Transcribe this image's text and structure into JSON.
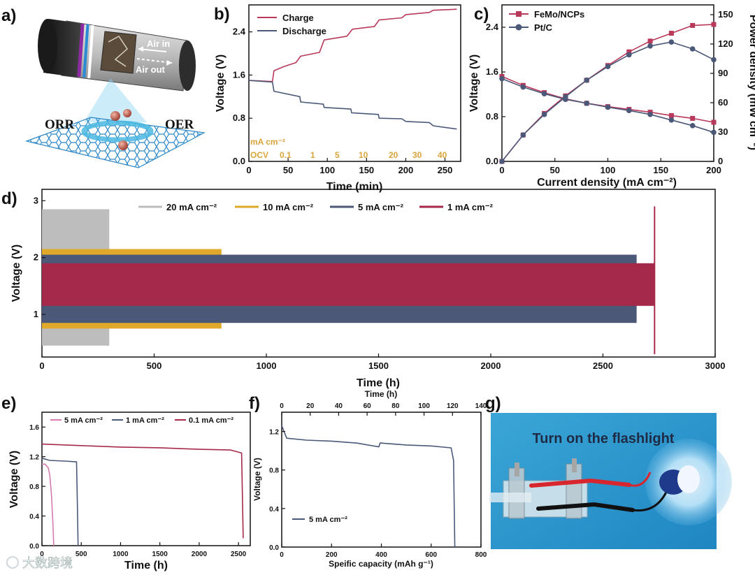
{
  "panel_labels": {
    "a": "a)",
    "b": "b)",
    "c": "c)",
    "d": "d)",
    "e": "e)",
    "f": "f)",
    "g": "g)"
  },
  "panel_a": {
    "air_in": "Air in",
    "air_out": "Air out",
    "orr": "ORR",
    "oer": "OER"
  },
  "panel_g": {
    "caption": "Turn on the flashlight"
  },
  "watermark": "大数跨境",
  "colors": {
    "red": "#b8395a",
    "blue": "#4b5878",
    "gold": "#e0a92a",
    "gray": "#bdbdbd",
    "darkred": "#a52a4a"
  },
  "chart_data": [
    {
      "id": "b",
      "type": "line",
      "xlabel": "Time (min)",
      "ylabel": "Voltage (V)",
      "xlim": [
        0,
        270
      ],
      "ylim": [
        0,
        2.9
      ],
      "xticks": [
        "0",
        "50",
        "100",
        "150",
        "200",
        "250"
      ],
      "yticks": [
        "0.0",
        "0.8",
        "1.6",
        "2.4"
      ],
      "series": [
        {
          "name": "Charge",
          "x": [
            0,
            30,
            32,
            45,
            60,
            66,
            90,
            96,
            125,
            132,
            160,
            166,
            195,
            200,
            230,
            235,
            265
          ],
          "y": [
            1.5,
            1.48,
            1.68,
            1.76,
            1.83,
            1.95,
            2.02,
            2.25,
            2.32,
            2.45,
            2.5,
            2.62,
            2.66,
            2.72,
            2.76,
            2.8,
            2.82
          ]
        },
        {
          "name": "Discharge",
          "x": [
            0,
            30,
            32,
            65,
            66,
            95,
            96,
            130,
            131,
            165,
            166,
            195,
            200,
            230,
            235,
            265
          ],
          "y": [
            1.5,
            1.47,
            1.3,
            1.2,
            1.1,
            1.06,
            1.0,
            0.97,
            0.9,
            0.87,
            0.8,
            0.79,
            0.74,
            0.72,
            0.66,
            0.6
          ]
        }
      ],
      "annotation_unit": "mA cm⁻²",
      "current_steps": [
        "OCV",
        "0.1",
        "1",
        "5",
        "10",
        "20",
        "30",
        "40"
      ]
    },
    {
      "id": "c",
      "type": "line",
      "xlabel": "Current density (mA cm⁻²)",
      "ylabel": "Voltage (V)",
      "ylabel_right": "Power density (mW cm⁻²)",
      "xlim": [
        0,
        200
      ],
      "ylim": [
        0,
        2.8
      ],
      "ylim_right": [
        0,
        160
      ],
      "xticks": [
        "0",
        "50",
        "100",
        "150",
        "200"
      ],
      "yticks": [
        "0.0",
        "0.8",
        "1.6",
        "2.4"
      ],
      "yticks_right": [
        "0",
        "30",
        "60",
        "90",
        "120",
        "150"
      ],
      "series": [
        {
          "name": "FeMo/NCPs",
          "marker": "square",
          "x": [
            0,
            20,
            40,
            60,
            80,
            100,
            120,
            140,
            160,
            180,
            200
          ],
          "voltage": [
            1.52,
            1.36,
            1.23,
            1.12,
            1.04,
            0.98,
            0.93,
            0.88,
            0.82,
            0.77,
            0.7
          ],
          "power": [
            0,
            27,
            49,
            67,
            83,
            98,
            112,
            123,
            131,
            139,
            140
          ]
        },
        {
          "name": "Pt/C",
          "marker": "circle",
          "x": [
            0,
            20,
            40,
            60,
            80,
            100,
            120,
            140,
            160,
            180,
            200
          ],
          "voltage": [
            1.48,
            1.33,
            1.21,
            1.11,
            1.04,
            0.97,
            0.91,
            0.84,
            0.74,
            0.64,
            0.52
          ],
          "power": [
            0,
            27,
            48,
            66,
            83,
            97,
            109,
            118,
            122,
            115,
            104
          ]
        }
      ]
    },
    {
      "id": "d",
      "type": "area",
      "xlabel": "Time (h)",
      "ylabel": "Voltage (V)",
      "xlim": [
        0,
        3000
      ],
      "ylim": [
        0.25,
        3.2
      ],
      "xticks": [
        "0",
        "500",
        "1000",
        "1500",
        "2000",
        "2500",
        "3000"
      ],
      "yticks": [
        "1",
        "2",
        "3"
      ],
      "series": [
        {
          "name": "20 mA cm⁻²",
          "x_end": 300,
          "upper": 2.85,
          "lower": 0.45
        },
        {
          "name": "10 mA cm⁻²",
          "x_end": 800,
          "upper": 2.15,
          "lower": 0.75
        },
        {
          "name": "5 mA cm⁻²",
          "x_end": 2650,
          "upper": 2.05,
          "lower": 0.85
        },
        {
          "name": "1 mA cm⁻²",
          "x_end": 2730,
          "upper": 1.9,
          "lower": 1.15
        }
      ]
    },
    {
      "id": "e",
      "type": "line",
      "xlabel": "Time (h)",
      "ylabel": "Voltage (V)",
      "xlim": [
        0,
        2650
      ],
      "ylim": [
        0,
        1.8
      ],
      "xticks": [
        "0",
        "500",
        "1000",
        "1500",
        "2000",
        "2500"
      ],
      "yticks": [
        "0.0",
        "0.4",
        "0.8",
        "1.2",
        "1.6"
      ],
      "series": [
        {
          "name": "5 mA cm⁻²",
          "x": [
            0,
            40,
            80,
            100,
            120,
            140,
            150
          ],
          "y": [
            1.1,
            1.1,
            1.05,
            0.95,
            0.7,
            0.3,
            0.0
          ]
        },
        {
          "name": "1 mA cm⁻²",
          "x": [
            0,
            100,
            300,
            440,
            450,
            460
          ],
          "y": [
            1.18,
            1.15,
            1.14,
            1.13,
            0.6,
            0.0
          ]
        },
        {
          "name": "0.1 mA cm⁻²",
          "x": [
            0,
            500,
            1000,
            1500,
            2000,
            2400,
            2540,
            2560
          ],
          "y": [
            1.37,
            1.35,
            1.33,
            1.32,
            1.3,
            1.29,
            1.25,
            0.1
          ]
        }
      ]
    },
    {
      "id": "f",
      "type": "line",
      "xlabel": "Speific capacity (mAh g⁻¹)",
      "ylabel": "Voltage (V)",
      "xlabel_top": "Time (h)",
      "xlim": [
        0,
        800
      ],
      "ylim": [
        0,
        1.4
      ],
      "xlim_top": [
        0,
        140
      ],
      "xticks": [
        "0",
        "200",
        "400",
        "600",
        "800"
      ],
      "xticks_top": [
        "0",
        "20",
        "40",
        "60",
        "80",
        "100",
        "120",
        "140"
      ],
      "yticks": [
        "0.0",
        "0.4",
        "0.8",
        "1.2"
      ],
      "series": [
        {
          "name": "5 mA cm⁻²",
          "x": [
            0,
            20,
            100,
            200,
            300,
            390,
            395,
            500,
            600,
            680,
            690,
            695
          ],
          "y": [
            1.26,
            1.13,
            1.11,
            1.1,
            1.08,
            1.04,
            1.08,
            1.06,
            1.05,
            1.03,
            0.9,
            0.0
          ]
        }
      ]
    }
  ]
}
